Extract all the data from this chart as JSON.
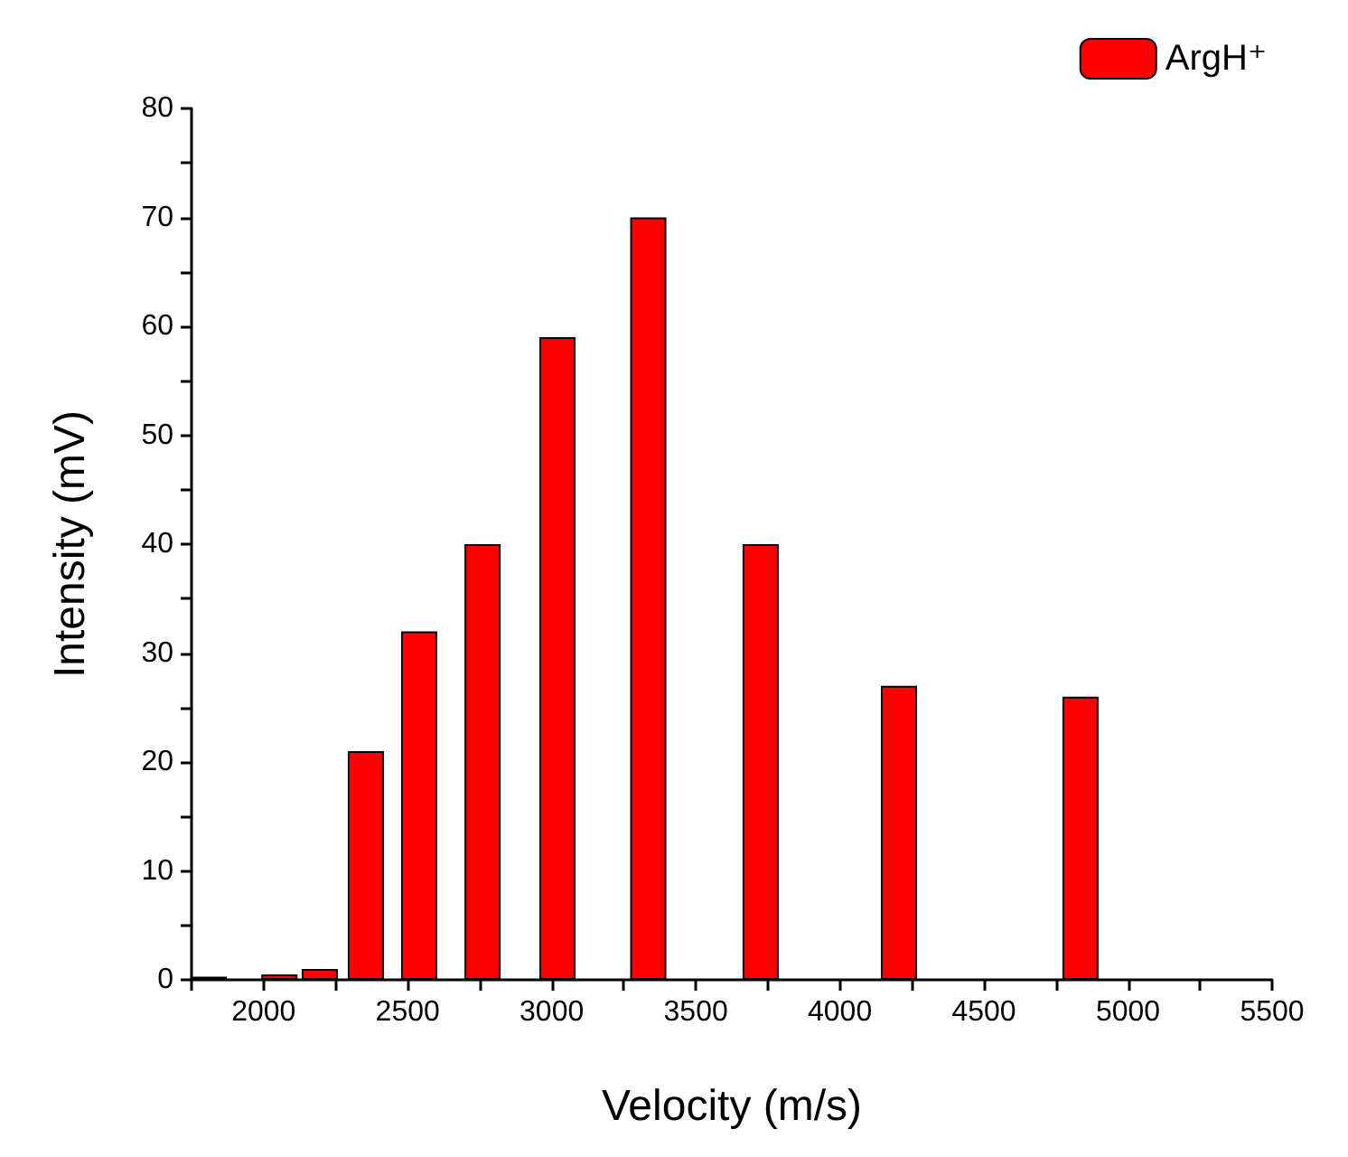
{
  "chart_data": {
    "type": "bar",
    "xlabel": "Velocity (m/s)",
    "ylabel": "Intensity (mV)",
    "x": [
      1810,
      2055,
      2195,
      2355,
      2540,
      2760,
      3020,
      3335,
      3725,
      4205,
      4835
    ],
    "series": [
      {
        "name": "ArgH⁺",
        "color": "#ff0000",
        "values": [
          0.3,
          0.5,
          1,
          21,
          32,
          40,
          59,
          70,
          40,
          27,
          26
        ]
      }
    ],
    "xlim": [
      1750,
      5500
    ],
    "xticks": [
      {
        "value": 1750,
        "label": null
      },
      2000,
      {
        "value": 2250,
        "label": null
      },
      2500,
      {
        "value": 2750,
        "label": null
      },
      3000,
      {
        "value": 3250,
        "label": null
      },
      3500,
      {
        "value": 3750,
        "label": null
      },
      4000,
      {
        "value": 4250,
        "label": null
      },
      4500,
      {
        "value": 4750,
        "label": null
      },
      5000,
      {
        "value": 5250,
        "label": null
      },
      5500
    ],
    "ylim": [
      0,
      80
    ],
    "yticks": [
      0,
      {
        "value": 5,
        "label": null
      },
      10,
      {
        "value": 15,
        "label": null
      },
      20,
      {
        "value": 25,
        "label": null
      },
      30,
      {
        "value": 35,
        "label": null
      },
      40,
      {
        "value": 45,
        "label": null
      },
      50,
      {
        "value": 55,
        "label": null
      },
      60,
      {
        "value": 65,
        "label": null
      },
      70,
      {
        "value": 75,
        "label": null
      },
      80
    ],
    "grid": false,
    "legend": "top right"
  }
}
